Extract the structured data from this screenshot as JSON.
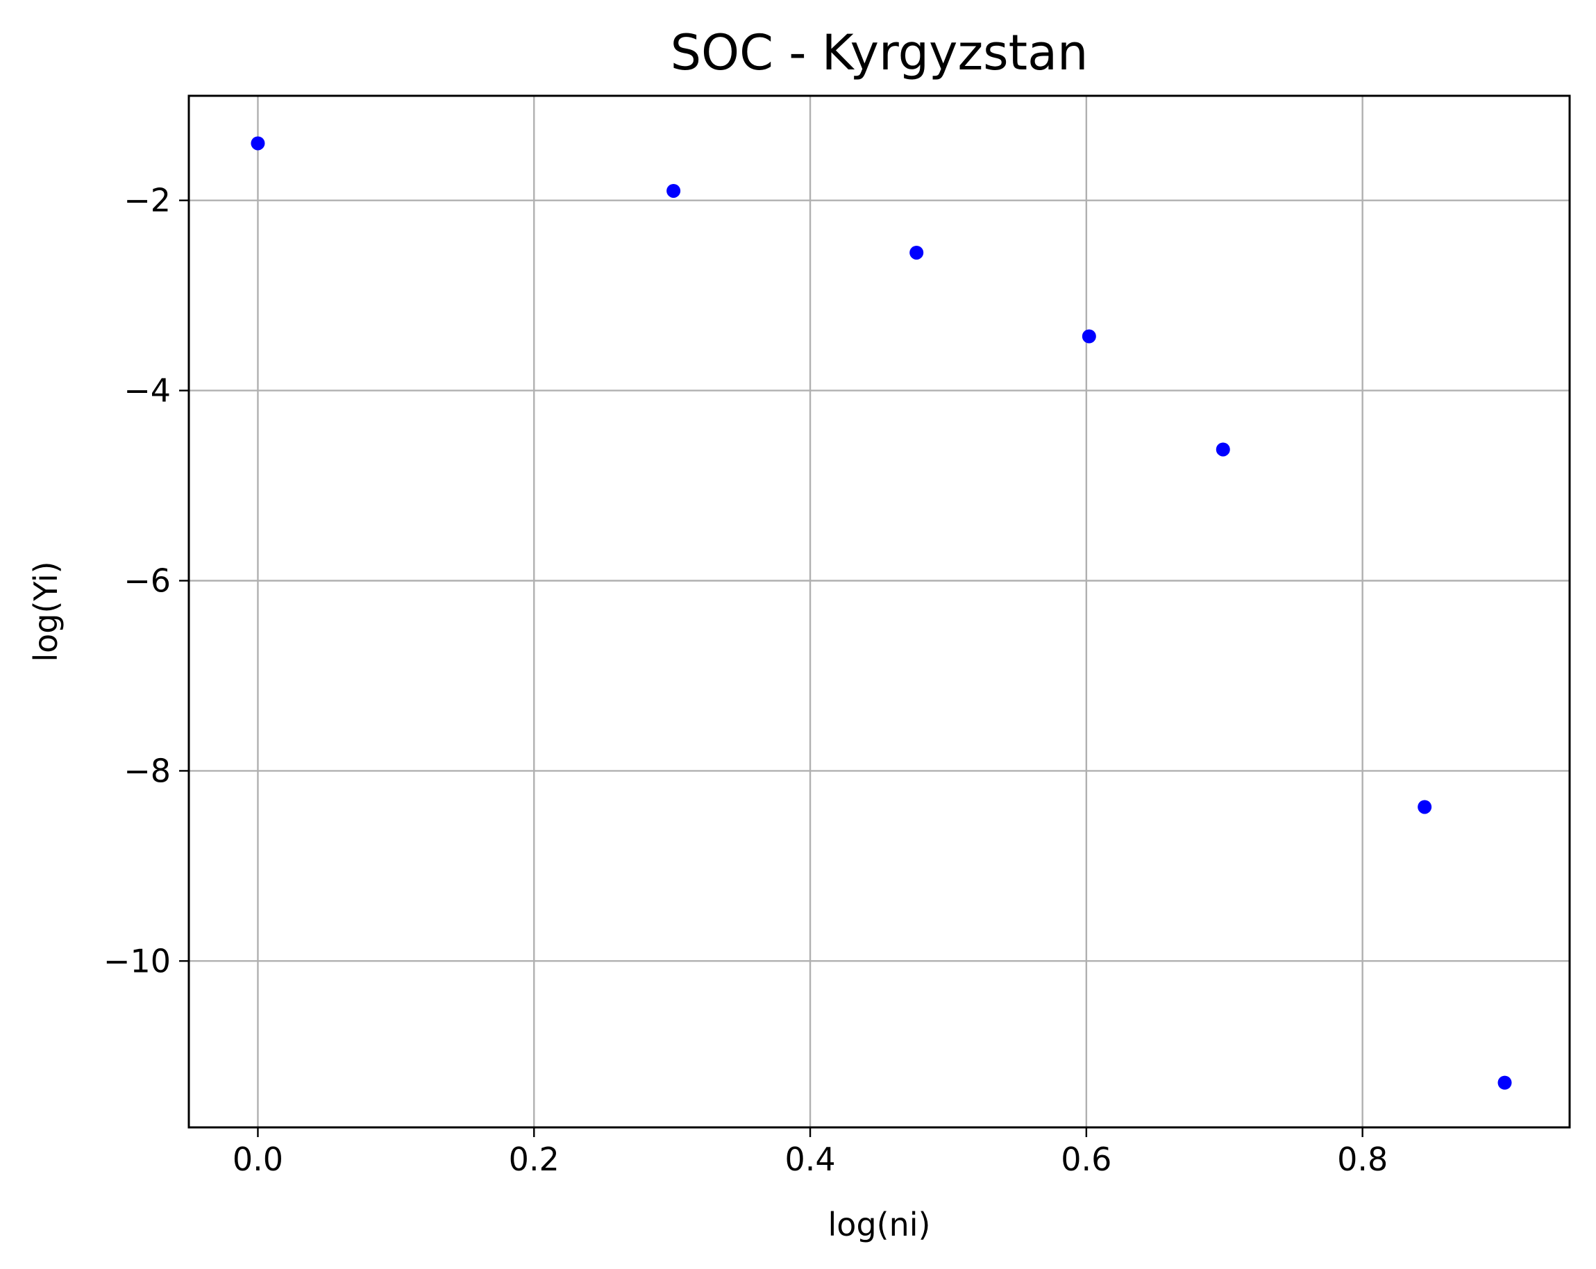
{
  "chart_data": {
    "type": "scatter",
    "title": "SOC - Kyrgyzstan",
    "xlabel": "log(ni)",
    "ylabel": "log(Yi)",
    "xlim": [
      -0.05,
      0.95
    ],
    "ylim": [
      -11.75,
      -0.9
    ],
    "xticks": [
      0.0,
      0.2,
      0.4,
      0.6,
      0.8
    ],
    "xtick_labels": [
      "0.0",
      "0.2",
      "0.4",
      "0.6",
      "0.8"
    ],
    "yticks": [
      -2,
      -4,
      -6,
      -8,
      -10
    ],
    "ytick_labels": [
      "−2",
      "−4",
      "−6",
      "−8",
      "−10"
    ],
    "grid": true,
    "marker_color": "#0000ff",
    "series": [
      {
        "name": "SOC",
        "points": [
          {
            "x": 0.0,
            "y": -1.4
          },
          {
            "x": 0.301,
            "y": -1.9
          },
          {
            "x": 0.477,
            "y": -2.55
          },
          {
            "x": 0.602,
            "y": -3.43
          },
          {
            "x": 0.699,
            "y": -4.62
          },
          {
            "x": 0.845,
            "y": -8.38
          },
          {
            "x": 0.903,
            "y": -11.28
          }
        ]
      }
    ]
  }
}
